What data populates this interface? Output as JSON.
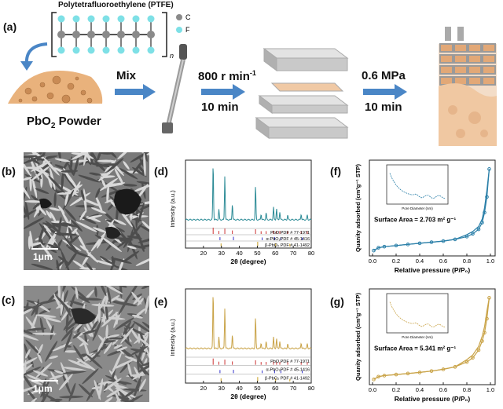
{
  "panels": {
    "a": "(a)",
    "b": "(b)",
    "c": "(c)",
    "d": "(d)",
    "e": "(e)",
    "f": "(f)",
    "g": "(g)"
  },
  "scheme": {
    "ptfe_title": "Polytetrafluoroethylene (PTFE)",
    "legend_c": "C",
    "legend_f": "F",
    "repeat_n": "n",
    "powder_label_main": "PbO",
    "powder_label_sub": "2",
    "powder_label_end": " Powder",
    "mix": "Mix",
    "speed_value": "800 r min",
    "speed_exp": "-1",
    "time1": "10 min",
    "pressure": "0.6 MPa",
    "time2": "10 min"
  },
  "sem": {
    "scale_b": "1μm",
    "scale_c": "1μm"
  },
  "xrd_axes": {
    "ylabel": "Intensity (a.u.)",
    "xlabel_pre": "2",
    "xlabel_theta": "θ",
    "xlabel_post": " (degree)",
    "xticks": [
      "20",
      "30",
      "40",
      "50",
      "60",
      "70",
      "80"
    ],
    "ref1": "PbO PDF # 77-1971",
    "ref2_d": "α-PbO₂PDF # 45-1416",
    "ref2_e": "α-PbO₂PDF # 45-1416",
    "ref3": "β-PbO₂ PDF # 41-1492"
  },
  "iso_axes": {
    "ylabel": "Quanity adsorbed (cm³g⁻¹ STP)",
    "xlabel": "Relative pressure (P/P₀)",
    "xticks": [
      "0.0",
      "0.2",
      "0.4",
      "0.6",
      "0.8",
      "1.0"
    ],
    "surface_f": "Surface Area = 2.703 m² g⁻¹",
    "surface_g": "Surface Area = 5.341 m² g⁻¹",
    "inset_xlabel": "Pore Diameter (nm)"
  },
  "colors": {
    "xrd_d": "#2a8a95",
    "xrd_e": "#c9a347",
    "iso_f": "#2a7fa8",
    "iso_g": "#c9a347",
    "arrow": "#4a86c6"
  },
  "chart_data": [
    {
      "type": "line",
      "panel": "d",
      "x_label": "2θ (degree)",
      "y_label": "Intensity (a.u.)",
      "xlim": [
        10,
        80
      ],
      "peaks_2theta": [
        25.4,
        28.6,
        31.9,
        36.1,
        49.0,
        52.1,
        54.9,
        59.0,
        60.7,
        62.5,
        66.9,
        74.4,
        77.8
      ],
      "peak_heights": [
        1.0,
        0.18,
        0.78,
        0.28,
        0.6,
        0.1,
        0.12,
        0.22,
        0.2,
        0.14,
        0.08,
        0.1,
        0.08
      ]
    },
    {
      "type": "line",
      "panel": "e",
      "x_label": "2θ (degree)",
      "y_label": "Intensity (a.u.)",
      "xlim": [
        10,
        80
      ],
      "peaks_2theta": [
        25.4,
        28.6,
        31.9,
        36.1,
        49.0,
        52.1,
        54.9,
        59.0,
        60.7,
        62.5,
        66.9,
        74.4,
        77.8
      ],
      "peak_heights": [
        1.0,
        0.2,
        0.72,
        0.25,
        0.55,
        0.1,
        0.12,
        0.2,
        0.18,
        0.13,
        0.08,
        0.1,
        0.08
      ]
    },
    {
      "type": "line",
      "panel": "f",
      "x_label": "Relative pressure (P/P₀)",
      "y_label": "Quanity adsorbed (cm³g⁻¹ STP)",
      "xlim": [
        0,
        1
      ],
      "x": [
        0.01,
        0.05,
        0.1,
        0.2,
        0.3,
        0.4,
        0.5,
        0.6,
        0.7,
        0.8,
        0.85,
        0.9,
        0.93,
        0.95,
        0.97,
        0.99
      ],
      "y": [
        0.2,
        0.45,
        0.55,
        0.65,
        0.75,
        0.85,
        0.95,
        1.05,
        1.2,
        1.45,
        1.7,
        2.1,
        2.7,
        3.6,
        5.0,
        7.5
      ],
      "annotation": "Surface Area = 2.703 m² g⁻¹"
    },
    {
      "type": "line",
      "panel": "g",
      "x_label": "Relative pressure (P/P₀)",
      "y_label": "Quanity adsorbed (cm³g⁻¹ STP)",
      "xlim": [
        0,
        1
      ],
      "x": [
        0.01,
        0.05,
        0.1,
        0.2,
        0.3,
        0.4,
        0.5,
        0.6,
        0.7,
        0.8,
        0.85,
        0.9,
        0.93,
        0.95,
        0.97,
        0.99
      ],
      "y": [
        0.3,
        0.7,
        0.85,
        1.0,
        1.15,
        1.3,
        1.5,
        1.75,
        2.1,
        2.8,
        3.4,
        4.5,
        5.8,
        7.0,
        9.0,
        12.0
      ],
      "annotation": "Surface Area = 5.341 m² g⁻¹"
    }
  ]
}
